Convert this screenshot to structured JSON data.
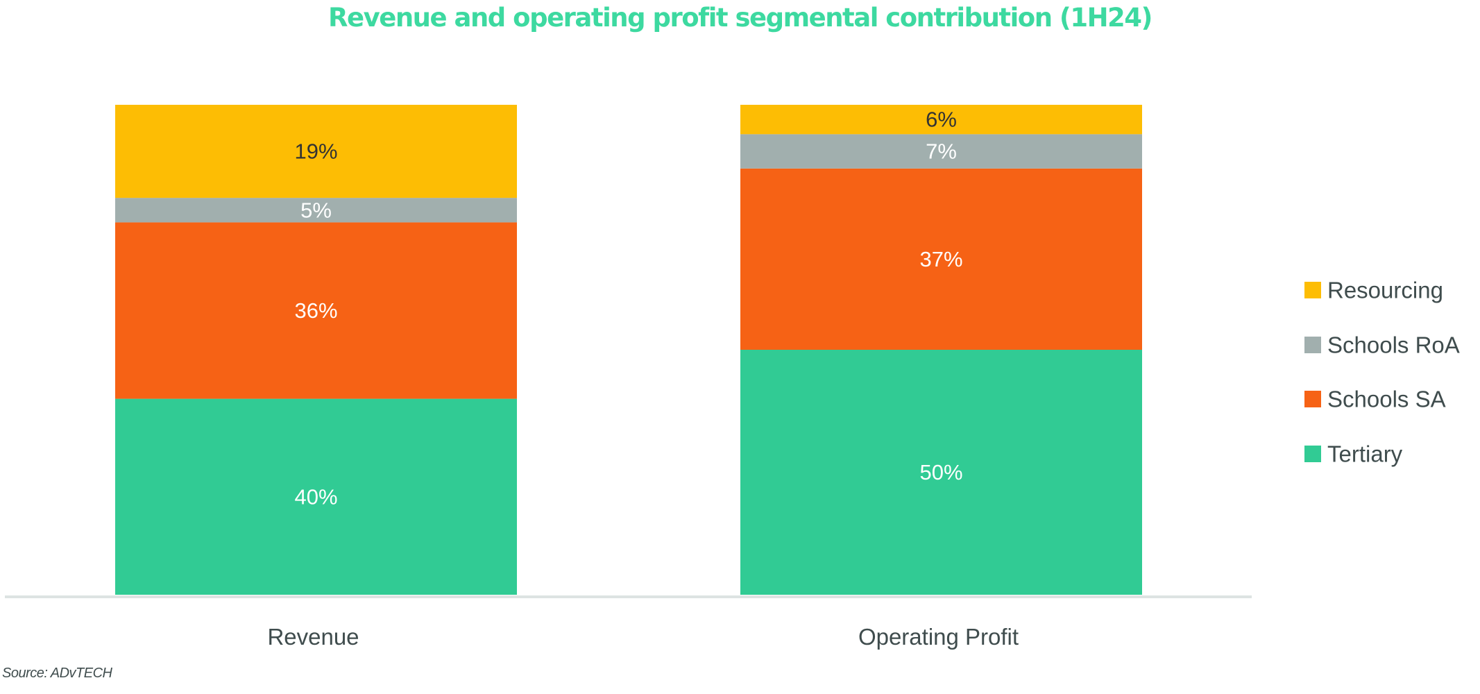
{
  "chart_data": {
    "type": "bar",
    "stacked": true,
    "title": "Revenue and operating profit segmental contribution (1H24)",
    "xlabel": "",
    "ylabel": "",
    "ylim": [
      0,
      100
    ],
    "grid": false,
    "legend_position": "right",
    "categories": [
      "Revenue",
      "Operating Profit"
    ],
    "series": [
      {
        "name": "Tertiary",
        "color": "#31cb94",
        "label_color": "#ffffff",
        "values": [
          40,
          50
        ],
        "labels": [
          "40%",
          "50%"
        ]
      },
      {
        "name": "Schools SA",
        "color": "#f66215",
        "label_color": "#ffffff",
        "values": [
          36,
          37
        ],
        "labels": [
          "36%",
          "37%"
        ]
      },
      {
        "name": "Schools RoA",
        "color": "#a1afae",
        "label_color": "#ffffff",
        "values": [
          5,
          7
        ],
        "labels": [
          "5%",
          "7%"
        ]
      },
      {
        "name": "Resourcing",
        "color": "#fdbd04",
        "label_color": "#333333",
        "values": [
          19,
          6
        ],
        "labels": [
          "19%",
          "6%"
        ]
      }
    ],
    "legend_order": [
      "Resourcing",
      "Schools RoA",
      "Schools SA",
      "Tertiary"
    ],
    "axis_color": "#dde3e2"
  },
  "source": "Source: ADvTECH"
}
